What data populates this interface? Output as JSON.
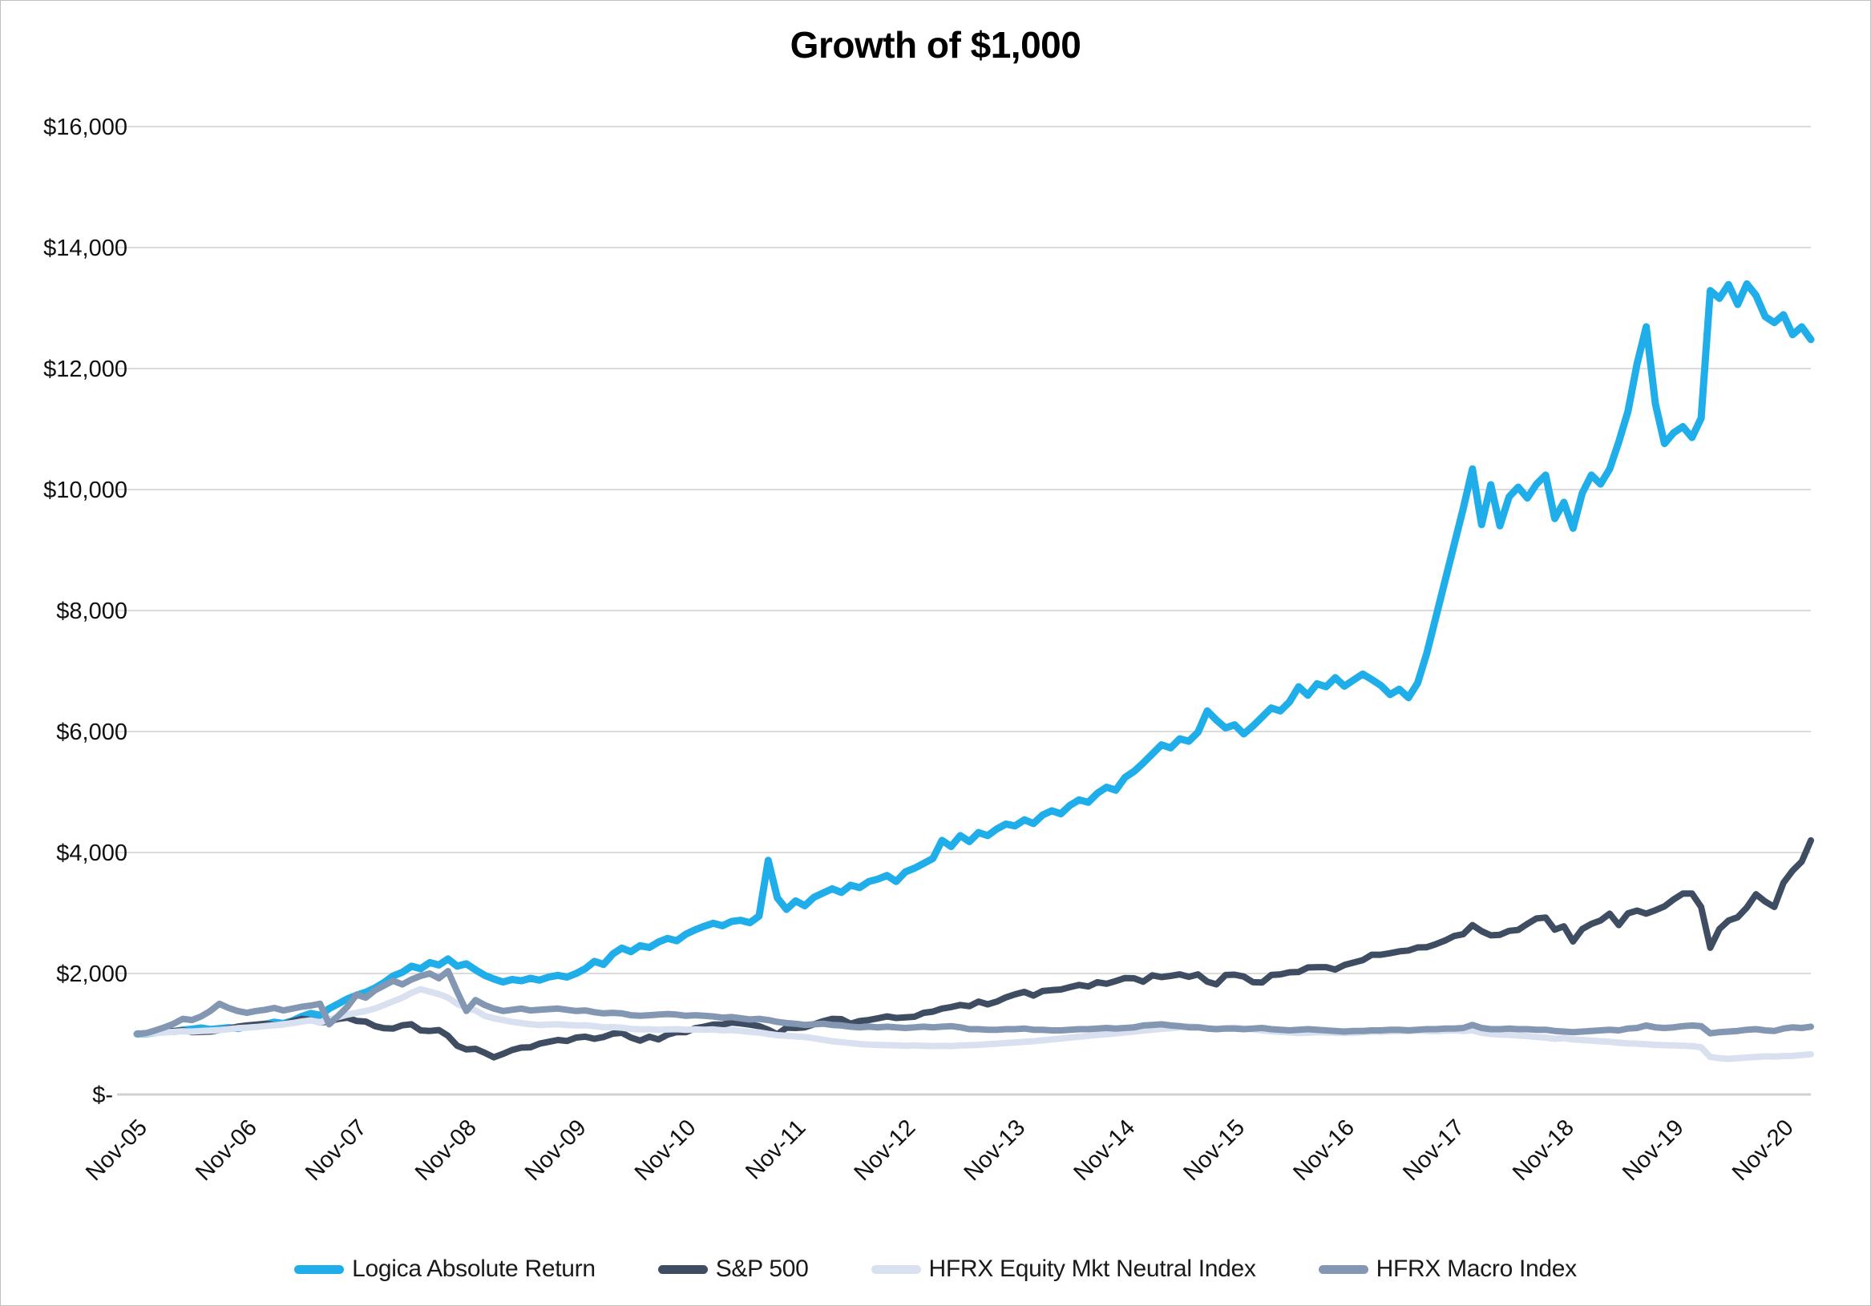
{
  "title": "Growth of $1,000",
  "colors": {
    "background": "#FFFFFF",
    "border": "#BFBFBF",
    "gridline": "#DBDBDB",
    "axis_line": "#D0D0D0",
    "axis_text": "#111111"
  },
  "chart_data": {
    "type": "line",
    "title": "Growth of $1,000",
    "grid": "horizontal",
    "legend_position": "bottom",
    "ylim": [
      0,
      16000
    ],
    "y_tick_step": 2000,
    "y_ticks": [
      {
        "value": 16000,
        "label": "$16,000"
      },
      {
        "value": 14000,
        "label": "$14,000"
      },
      {
        "value": 12000,
        "label": "$12,000"
      },
      {
        "value": 10000,
        "label": "$10,000"
      },
      {
        "value": 8000,
        "label": "$8,000"
      },
      {
        "value": 6000,
        "label": "$6,000"
      },
      {
        "value": 4000,
        "label": "$4,000"
      },
      {
        "value": 2000,
        "label": "$2,000"
      },
      {
        "value": 0,
        "label": "$-"
      }
    ],
    "x_tick_labels": [
      "Nov-05",
      "Nov-06",
      "Nov-07",
      "Nov-08",
      "Nov-09",
      "Nov-10",
      "Nov-11",
      "Nov-12",
      "Nov-13",
      "Nov-14",
      "Nov-15",
      "Nov-16",
      "Nov-17",
      "Nov-18",
      "Nov-19",
      "Nov-20"
    ],
    "x_tick_every_points": 12,
    "points_are": "monthly values from Nov-2005 through Feb-2021",
    "series": [
      {
        "name": "Logica Absolute Return",
        "color": "#1FAEE9",
        "stroke_width": 9,
        "values": [
          1000,
          1005,
          1020,
          1050,
          1040,
          1065,
          1080,
          1100,
          1075,
          1090,
          1105,
          1090,
          1120,
          1135,
          1160,
          1195,
          1175,
          1220,
          1290,
          1340,
          1310,
          1420,
          1500,
          1580,
          1640,
          1690,
          1760,
          1850,
          1960,
          2020,
          2120,
          2080,
          2180,
          2140,
          2240,
          2120,
          2160,
          2060,
          1970,
          1910,
          1860,
          1900,
          1880,
          1920,
          1890,
          1940,
          1970,
          1940,
          2000,
          2080,
          2200,
          2150,
          2320,
          2420,
          2360,
          2460,
          2430,
          2520,
          2580,
          2540,
          2650,
          2720,
          2780,
          2830,
          2790,
          2860,
          2880,
          2840,
          2950,
          3870,
          3250,
          3060,
          3200,
          3120,
          3260,
          3330,
          3400,
          3340,
          3460,
          3420,
          3520,
          3560,
          3620,
          3520,
          3680,
          3740,
          3820,
          3900,
          4200,
          4100,
          4280,
          4180,
          4330,
          4280,
          4390,
          4470,
          4440,
          4540,
          4480,
          4620,
          4690,
          4640,
          4780,
          4870,
          4830,
          4980,
          5080,
          5030,
          5240,
          5340,
          5480,
          5630,
          5780,
          5730,
          5880,
          5840,
          5990,
          6340,
          6190,
          6060,
          6110,
          5960,
          6090,
          6240,
          6390,
          6340,
          6490,
          6740,
          6600,
          6790,
          6740,
          6890,
          6750,
          6850,
          6950,
          6860,
          6760,
          6610,
          6700,
          6560,
          6800,
          7290,
          7890,
          8490,
          9090,
          9690,
          10340,
          9420,
          10080,
          9400,
          9880,
          10040,
          9860,
          10090,
          10240,
          9520,
          9790,
          9360,
          9940,
          10240,
          10090,
          10340,
          10790,
          11290,
          12080,
          12690,
          11420,
          10760,
          10940,
          11040,
          10860,
          11180,
          13290,
          13160,
          13390,
          13060,
          13400,
          13210,
          12860,
          12760,
          12890,
          12560,
          12690,
          12480
        ]
      },
      {
        "name": "S&P 500",
        "color": "#3F4D63",
        "stroke_width": 8,
        "values": [
          1000,
          1010,
          1030,
          1035,
          1050,
          1060,
          1030,
          1035,
          1040,
          1065,
          1090,
          1120,
          1140,
          1155,
          1170,
          1150,
          1160,
          1210,
          1250,
          1230,
          1190,
          1205,
          1250,
          1270,
          1215,
          1205,
          1130,
          1095,
          1090,
          1145,
          1160,
          1060,
          1050,
          1065,
          970,
          805,
          745,
          755,
          690,
          615,
          670,
          735,
          775,
          780,
          840,
          870,
          900,
          885,
          940,
          955,
          920,
          950,
          1005,
          1020,
          940,
          890,
          955,
          910,
          990,
          1030,
          1030,
          1095,
          1120,
          1155,
          1155,
          1190,
          1175,
          1155,
          1130,
          1070,
          995,
          1105,
          1100,
          1110,
          1160,
          1210,
          1250,
          1245,
          1170,
          1215,
          1230,
          1260,
          1290,
          1265,
          1275,
          1285,
          1350,
          1370,
          1420,
          1445,
          1480,
          1460,
          1535,
          1490,
          1535,
          1605,
          1655,
          1695,
          1635,
          1710,
          1725,
          1735,
          1775,
          1810,
          1785,
          1855,
          1830,
          1875,
          1925,
          1920,
          1865,
          1970,
          1940,
          1960,
          1985,
          1945,
          1985,
          1865,
          1820,
          1975,
          1980,
          1950,
          1855,
          1850,
          1975,
          1985,
          2020,
          2025,
          2100,
          2105,
          2105,
          2065,
          2140,
          2180,
          2220,
          2310,
          2310,
          2335,
          2365,
          2380,
          2430,
          2435,
          2485,
          2545,
          2620,
          2650,
          2800,
          2700,
          2630,
          2640,
          2705,
          2720,
          2820,
          2910,
          2925,
          2725,
          2780,
          2530,
          2735,
          2820,
          2875,
          2990,
          2800,
          2995,
          3040,
          2990,
          3045,
          3110,
          3225,
          3320,
          3320,
          3100,
          2425,
          2735,
          2875,
          2930,
          3090,
          3310,
          3190,
          3100,
          3500,
          3700,
          3850,
          4200
        ]
      },
      {
        "name": "HFRX Equity Mkt Neutral Index",
        "color": "#D9E1F1",
        "stroke_width": 8,
        "values": [
          1000,
          1005,
          1015,
          1025,
          1035,
          1045,
          1040,
          1050,
          1055,
          1065,
          1080,
          1095,
          1105,
          1115,
          1130,
          1145,
          1160,
          1180,
          1205,
          1225,
          1190,
          1240,
          1280,
          1320,
          1350,
          1380,
          1420,
          1480,
          1540,
          1600,
          1680,
          1740,
          1700,
          1660,
          1600,
          1500,
          1430,
          1390,
          1300,
          1260,
          1230,
          1200,
          1180,
          1160,
          1150,
          1155,
          1160,
          1150,
          1140,
          1145,
          1130,
          1110,
          1115,
          1105,
          1085,
          1075,
          1080,
          1070,
          1075,
          1080,
          1070,
          1075,
          1070,
          1075,
          1060,
          1065,
          1050,
          1035,
          1025,
          1000,
          980,
          970,
          960,
          950,
          930,
          905,
          880,
          865,
          850,
          835,
          825,
          820,
          815,
          810,
          805,
          810,
          805,
          800,
          805,
          800,
          810,
          815,
          820,
          830,
          840,
          850,
          860,
          870,
          880,
          895,
          910,
          925,
          940,
          955,
          970,
          985,
          995,
          1010,
          1025,
          1040,
          1055,
          1070,
          1085,
          1095,
          1110,
          1125,
          1115,
          1100,
          1085,
          1095,
          1105,
          1090,
          1080,
          1060,
          1045,
          1035,
          1025,
          1015,
          1020,
          1030,
          1025,
          1020,
          1015,
          1020,
          1030,
          1040,
          1035,
          1045,
          1050,
          1045,
          1055,
          1050,
          1045,
          1055,
          1060,
          1050,
          1060,
          1020,
          1000,
          990,
          985,
          975,
          965,
          950,
          940,
          920,
          930,
          910,
          900,
          890,
          880,
          870,
          855,
          845,
          840,
          830,
          820,
          815,
          810,
          805,
          800,
          780,
          620,
          600,
          590,
          600,
          610,
          620,
          630,
          625,
          635,
          640,
          650,
          665
        ]
      },
      {
        "name": "HFRX Macro Index",
        "color": "#8497B2",
        "stroke_width": 8,
        "values": [
          1000,
          1015,
          1060,
          1110,
          1170,
          1250,
          1230,
          1290,
          1380,
          1500,
          1430,
          1380,
          1350,
          1380,
          1400,
          1430,
          1390,
          1420,
          1450,
          1470,
          1500,
          1160,
          1300,
          1450,
          1650,
          1600,
          1720,
          1800,
          1880,
          1820,
          1900,
          1960,
          2000,
          1920,
          2040,
          1700,
          1380,
          1560,
          1480,
          1420,
          1380,
          1400,
          1420,
          1390,
          1400,
          1410,
          1420,
          1400,
          1380,
          1390,
          1360,
          1340,
          1350,
          1340,
          1310,
          1300,
          1310,
          1320,
          1330,
          1320,
          1300,
          1310,
          1300,
          1290,
          1270,
          1280,
          1260,
          1240,
          1250,
          1230,
          1200,
          1180,
          1170,
          1150,
          1160,
          1170,
          1150,
          1140,
          1120,
          1110,
          1120,
          1110,
          1120,
          1110,
          1100,
          1110,
          1120,
          1110,
          1120,
          1130,
          1110,
          1080,
          1080,
          1070,
          1070,
          1080,
          1080,
          1090,
          1070,
          1070,
          1060,
          1060,
          1070,
          1080,
          1080,
          1090,
          1100,
          1090,
          1100,
          1110,
          1140,
          1150,
          1160,
          1140,
          1130,
          1110,
          1110,
          1090,
          1080,
          1090,
          1090,
          1080,
          1090,
          1100,
          1080,
          1070,
          1060,
          1070,
          1080,
          1070,
          1060,
          1050,
          1040,
          1050,
          1050,
          1060,
          1060,
          1070,
          1070,
          1060,
          1070,
          1080,
          1080,
          1090,
          1090,
          1100,
          1150,
          1100,
          1080,
          1080,
          1090,
          1080,
          1080,
          1070,
          1070,
          1050,
          1040,
          1030,
          1040,
          1050,
          1060,
          1070,
          1060,
          1090,
          1100,
          1140,
          1110,
          1100,
          1110,
          1130,
          1140,
          1130,
          1010,
          1030,
          1040,
          1050,
          1070,
          1080,
          1060,
          1050,
          1090,
          1110,
          1100,
          1120
        ]
      }
    ]
  }
}
